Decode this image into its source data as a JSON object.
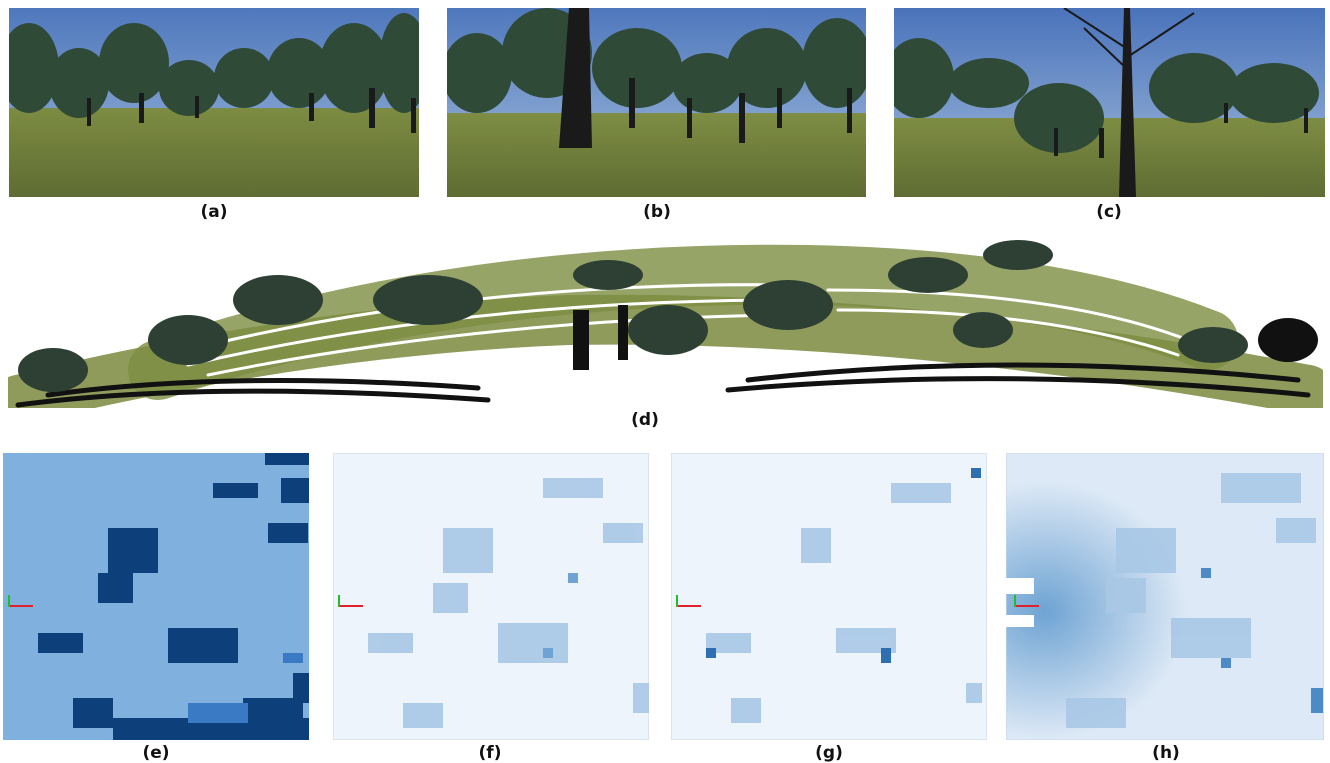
{
  "figure": {
    "captions": [
      "(a)",
      "(b)",
      "(c)",
      "(d)",
      "(e)",
      "(f)",
      "(g)",
      "(h)"
    ],
    "colors": {
      "sky": "#5f86c6",
      "grass": "#6b7a3a",
      "tree": "#2f4a36",
      "trunk": "#1a1a1a",
      "grid_light": "#7fb0de",
      "grid_dark": "#0d3f7a",
      "heat_low": "#eef4fb",
      "heat_high": "#2d6fb0",
      "axis_x": "#e0202a",
      "axis_y": "#1fbf2a"
    }
  }
}
